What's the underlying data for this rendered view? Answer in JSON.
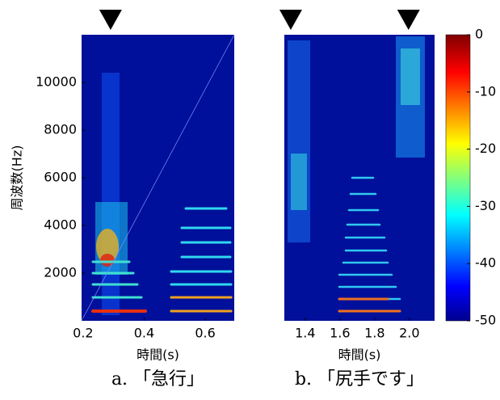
{
  "chart_data": [
    {
      "type": "spectrogram",
      "caption": "a. 「急行」",
      "xlabel": "時間(s)",
      "ylabel": "周波数(Hz)",
      "xlim": [
        0.195,
        0.695
      ],
      "xticks": [
        0.2,
        0.4,
        0.6
      ],
      "ylim": [
        0,
        12000
      ],
      "yticks": [
        2000,
        4000,
        6000,
        8000,
        10000
      ],
      "markers": [
        0.29
      ]
    },
    {
      "type": "spectrogram",
      "caption": "b. 「尻手です」",
      "xlabel": "時間(s)",
      "xlim": [
        1.28,
        2.145
      ],
      "xticks": [
        1.4,
        1.6,
        1.8,
        {
          "value": 2,
          "label": "2.0"
        }
      ],
      "ylim": [
        0,
        12000
      ],
      "markers": [
        1.317,
        1.995
      ]
    },
    {
      "type": "colorbar",
      "zlim": [
        -50,
        0
      ],
      "zticks": [
        0,
        -10,
        -20,
        -30,
        -40,
        -50
      ]
    }
  ]
}
